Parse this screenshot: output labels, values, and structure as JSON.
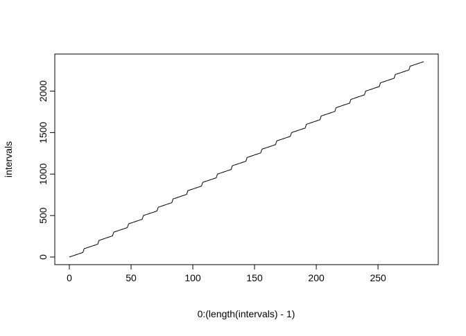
{
  "chart_data": {
    "type": "line",
    "title": "",
    "xlabel": "0:(length(intervals) - 1)",
    "ylabel": "intervals",
    "xlim": [
      0,
      287
    ],
    "ylim": [
      0,
      2355
    ],
    "x_ticks": [
      0,
      50,
      100,
      150,
      200,
      250
    ],
    "y_ticks": [
      0,
      500,
      1000,
      1500,
      2000
    ],
    "grid": false,
    "legend": "none",
    "line_color": "#000000",
    "series": [
      {
        "description_of_values": "5-minute interval identifiers HHMM, repeating per hour",
        "x_start": 0,
        "x_step": 1,
        "count": 288,
        "hours": 24,
        "minutes_per_step": 5,
        "values_rule": "y = 100*hour + minute"
      }
    ]
  }
}
